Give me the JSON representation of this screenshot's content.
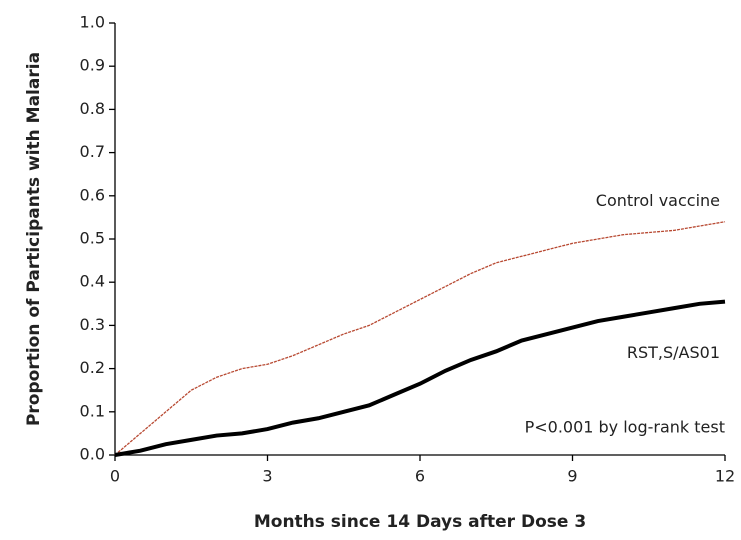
{
  "chart_data": {
    "type": "line",
    "xlabel": "Months since 14 Days after Dose 3",
    "ylabel": "Proportion of Participants with Malaria",
    "annotation": "P<0.001 by log-rank test",
    "x": [
      0,
      0.5,
      1,
      1.5,
      2,
      2.5,
      3,
      3.5,
      4,
      4.5,
      5,
      5.5,
      6,
      6.5,
      7,
      7.5,
      8,
      8.5,
      9,
      9.5,
      10,
      10.5,
      11,
      11.5,
      12
    ],
    "series": [
      {
        "name": "Control vaccine",
        "color": "#b84a33",
        "values": [
          0,
          0.05,
          0.1,
          0.15,
          0.18,
          0.2,
          0.21,
          0.23,
          0.255,
          0.28,
          0.3,
          0.33,
          0.36,
          0.39,
          0.42,
          0.445,
          0.46,
          0.475,
          0.49,
          0.5,
          0.51,
          0.515,
          0.52,
          0.53,
          0.54
        ]
      },
      {
        "name": "RST,S/AS01",
        "color": "#000000",
        "values": [
          0,
          0.01,
          0.025,
          0.035,
          0.045,
          0.05,
          0.06,
          0.075,
          0.085,
          0.1,
          0.115,
          0.14,
          0.165,
          0.195,
          0.22,
          0.24,
          0.265,
          0.28,
          0.295,
          0.31,
          0.32,
          0.33,
          0.34,
          0.35,
          0.355
        ]
      }
    ],
    "xlim": [
      0,
      12
    ],
    "xticks": [
      0,
      3,
      6,
      9,
      12
    ],
    "ylim": [
      0,
      1
    ],
    "yticks": [
      {
        "value": 0,
        "label": "0.0"
      },
      0.1,
      0.2,
      0.3,
      0.4,
      0.5,
      0.6,
      0.7,
      0.8,
      0.9,
      {
        "value": 1,
        "label": "1.0"
      }
    ]
  }
}
